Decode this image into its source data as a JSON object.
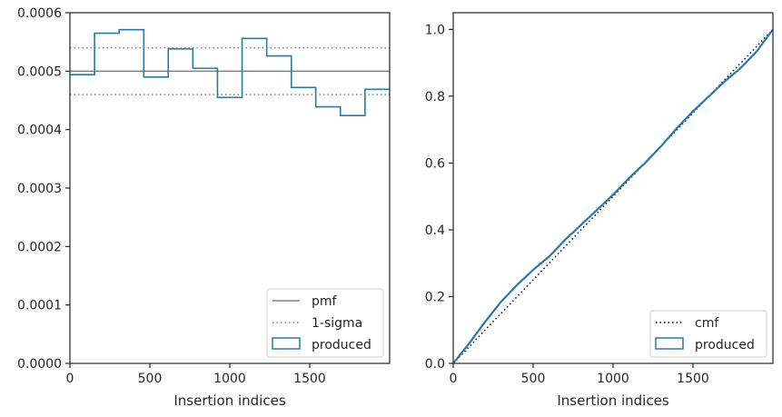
{
  "chart_data": [
    {
      "type": "step",
      "xlabel": "Insertion indices",
      "ylabel": "",
      "xlim": [
        0,
        2000
      ],
      "ylim": [
        0,
        0.0006
      ],
      "x_ticks": [
        0,
        500,
        1000,
        1500
      ],
      "x_tick_labels": [
        "0",
        "500",
        "1000",
        "1500"
      ],
      "y_ticks": [
        0,
        0.0001,
        0.0002,
        0.0003,
        0.0004,
        0.0005,
        0.0006
      ],
      "y_tick_labels": [
        "0.0000",
        "0.0001",
        "0.0002",
        "0.0003",
        "0.0004",
        "0.0005",
        "0.0006"
      ],
      "grid": false,
      "legend_position": "bottom-right",
      "legend": [
        "pmf",
        "1-sigma",
        "produced"
      ],
      "reference_lines": [
        {
          "name": "pmf",
          "style": "solid",
          "color": "#808080",
          "y": 0.0005
        },
        {
          "name": "1-sigma",
          "style": "dotted",
          "color": "#808080",
          "y": 0.00054
        },
        {
          "name": "1-sigma",
          "style": "dotted",
          "color": "#808080",
          "y": 0.00046
        }
      ],
      "series": [
        {
          "name": "produced",
          "color": "#2878b0",
          "bin_edges": [
            0,
            154,
            308,
            462,
            615,
            769,
            923,
            1077,
            1231,
            1385,
            1538,
            1692,
            1846,
            2000
          ],
          "values": [
            0.000494,
            0.000565,
            0.000571,
            0.00049,
            0.000538,
            0.000505,
            0.000455,
            0.000556,
            0.000526,
            0.000472,
            0.000439,
            0.000424,
            0.000469
          ]
        }
      ]
    },
    {
      "type": "line",
      "xlabel": "Insertion indices",
      "ylabel": "",
      "xlim": [
        0,
        2000
      ],
      "ylim": [
        0,
        1.05
      ],
      "x_ticks": [
        0,
        500,
        1000,
        1500
      ],
      "x_tick_labels": [
        "0",
        "500",
        "1000",
        "1500"
      ],
      "y_ticks": [
        0,
        0.2,
        0.4,
        0.6,
        0.8,
        1.0
      ],
      "y_tick_labels": [
        "0.0",
        "0.2",
        "0.4",
        "0.6",
        "0.8",
        "1.0"
      ],
      "grid": false,
      "legend_position": "bottom-right",
      "legend": [
        "cmf",
        "produced"
      ],
      "series": [
        {
          "name": "cmf",
          "style": "dotted",
          "color": "#000000",
          "x": [
            0,
            2000
          ],
          "y": [
            0,
            1.0
          ]
        },
        {
          "name": "produced",
          "color": "#2878b0",
          "x": [
            0,
            100,
            200,
            300,
            400,
            500,
            600,
            700,
            800,
            900,
            1000,
            1100,
            1200,
            1300,
            1400,
            1500,
            1600,
            1700,
            1800,
            1900,
            2000
          ],
          "y": [
            0,
            0.06,
            0.125,
            0.185,
            0.235,
            0.28,
            0.32,
            0.37,
            0.415,
            0.46,
            0.505,
            0.555,
            0.6,
            0.65,
            0.705,
            0.755,
            0.8,
            0.845,
            0.885,
            0.935,
            1.0
          ]
        }
      ]
    }
  ]
}
